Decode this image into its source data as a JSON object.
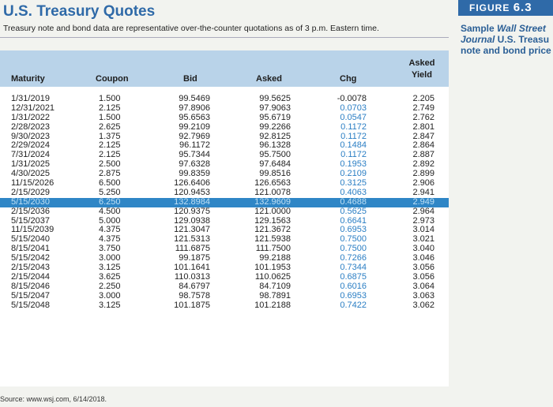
{
  "title": "U.S. Treasury Quotes",
  "subtitle": "Treasury note and bond data are representative over-the-counter quotations as of 3 p.m. Eastern time.",
  "figure": {
    "label": "FIGURE",
    "number": "6.3",
    "caption_line1_bold": "Sample ",
    "caption_line1_italic": "Wall Street",
    "caption_line2_italic": "Journal",
    "caption_line2_rest": " U.S. Treasu",
    "caption_line3": "note and bond price"
  },
  "headers": {
    "maturity": "Maturity",
    "coupon": "Coupon",
    "bid": "Bid",
    "asked": "Asked",
    "chg": "Chg",
    "yield_line1": "Asked",
    "yield_line2": "Yield"
  },
  "rows": [
    {
      "maturity": "1/31/2019",
      "coupon": "1.500",
      "bid": "99.5469",
      "asked": "99.5625",
      "chg": "-0.0078",
      "yield": "2.205"
    },
    {
      "maturity": "12/31/2021",
      "coupon": "2.125",
      "bid": "97.8906",
      "asked": "97.9063",
      "chg": "0.0703",
      "yield": "2.749"
    },
    {
      "maturity": "1/31/2022",
      "coupon": "1.500",
      "bid": "95.6563",
      "asked": "95.6719",
      "chg": "0.0547",
      "yield": "2.762"
    },
    {
      "maturity": "2/28/2023",
      "coupon": "2.625",
      "bid": "99.2109",
      "asked": "99.2266",
      "chg": "0.1172",
      "yield": "2.801"
    },
    {
      "maturity": "9/30/2023",
      "coupon": "1.375",
      "bid": "92.7969",
      "asked": "92.8125",
      "chg": "0.1172",
      "yield": "2.847"
    },
    {
      "maturity": "2/29/2024",
      "coupon": "2.125",
      "bid": "96.1172",
      "asked": "96.1328",
      "chg": "0.1484",
      "yield": "2.864"
    },
    {
      "maturity": "7/31/2024",
      "coupon": "2.125",
      "bid": "95.7344",
      "asked": "95.7500",
      "chg": "0.1172",
      "yield": "2.887"
    },
    {
      "maturity": "1/31/2025",
      "coupon": "2.500",
      "bid": "97.6328",
      "asked": "97.6484",
      "chg": "0.1953",
      "yield": "2.892"
    },
    {
      "maturity": "4/30/2025",
      "coupon": "2.875",
      "bid": "99.8359",
      "asked": "99.8516",
      "chg": "0.2109",
      "yield": "2.899"
    },
    {
      "maturity": "11/15/2026",
      "coupon": "6.500",
      "bid": "126.6406",
      "asked": "126.6563",
      "chg": "0.3125",
      "yield": "2.906"
    },
    {
      "maturity": "2/15/2029",
      "coupon": "5.250",
      "bid": "120.9453",
      "asked": "121.0078",
      "chg": "0.4063",
      "yield": "2.941"
    },
    {
      "maturity": "5/15/2030",
      "coupon": "6.250",
      "bid": "132.8984",
      "asked": "132.9609",
      "chg": "0.4688",
      "yield": "2.949"
    },
    {
      "maturity": "2/15/2036",
      "coupon": "4.500",
      "bid": "120.9375",
      "asked": "121.0000",
      "chg": "0.5625",
      "yield": "2.964"
    },
    {
      "maturity": "5/15/2037",
      "coupon": "5.000",
      "bid": "129.0938",
      "asked": "129.1563",
      "chg": "0.6641",
      "yield": "2.973"
    },
    {
      "maturity": "11/15/2039",
      "coupon": "4.375",
      "bid": "121.3047",
      "asked": "121.3672",
      "chg": "0.6953",
      "yield": "3.014"
    },
    {
      "maturity": "5/15/2040",
      "coupon": "4.375",
      "bid": "121.5313",
      "asked": "121.5938",
      "chg": "0.7500",
      "yield": "3.021"
    },
    {
      "maturity": "8/15/2041",
      "coupon": "3.750",
      "bid": "111.6875",
      "asked": "111.7500",
      "chg": "0.7500",
      "yield": "3.040"
    },
    {
      "maturity": "5/15/2042",
      "coupon": "3.000",
      "bid": "99.1875",
      "asked": "99.2188",
      "chg": "0.7266",
      "yield": "3.046"
    },
    {
      "maturity": "2/15/2043",
      "coupon": "3.125",
      "bid": "101.1641",
      "asked": "101.1953",
      "chg": "0.7344",
      "yield": "3.056"
    },
    {
      "maturity": "2/15/2044",
      "coupon": "3.625",
      "bid": "110.0313",
      "asked": "110.0625",
      "chg": "0.6875",
      "yield": "3.056"
    },
    {
      "maturity": "8/15/2046",
      "coupon": "2.250",
      "bid": "84.6797",
      "asked": "84.7109",
      "chg": "0.6016",
      "yield": "3.064"
    },
    {
      "maturity": "5/15/2047",
      "coupon": "3.000",
      "bid": "98.7578",
      "asked": "98.7891",
      "chg": "0.6953",
      "yield": "3.063"
    },
    {
      "maturity": "5/15/2048",
      "coupon": "3.125",
      "bid": "101.1875",
      "asked": "101.2188",
      "chg": "0.7422",
      "yield": "3.062"
    }
  ],
  "highlighted_maturity": "5/15/2030",
  "source": "Source: www.wsj.com, 6/14/2018.",
  "colors": {
    "title": "#2f6aa8",
    "header_bg": "#b9d3e9",
    "highlight": "#2f86c6",
    "change_text": "#2a7ec4"
  }
}
